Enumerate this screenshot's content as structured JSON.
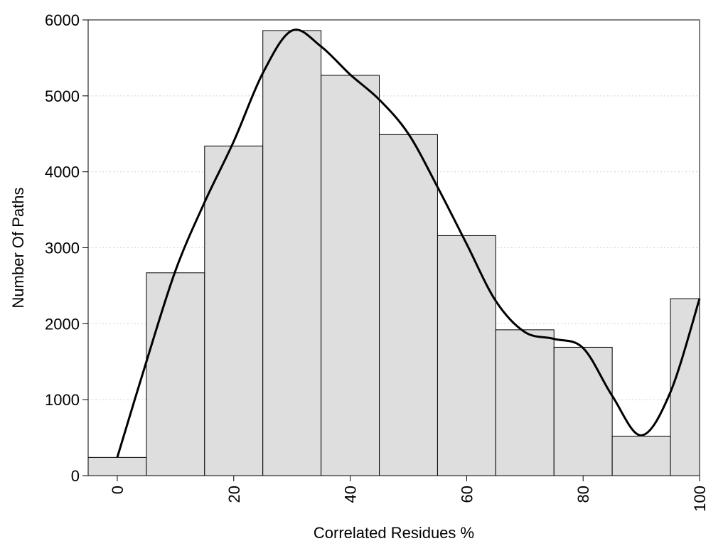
{
  "chart_data": {
    "type": "bar",
    "title": "",
    "xlabel": "Correlated Residues %",
    "ylabel": "Number Of Paths",
    "xlim": [
      -5,
      100
    ],
    "ylim": [
      0,
      6000
    ],
    "x_ticks": [
      0,
      20,
      40,
      60,
      80,
      100
    ],
    "y_ticks": [
      0,
      1000,
      2000,
      3000,
      4000,
      5000,
      6000
    ],
    "grid": "horizontal dotted",
    "bin_width": 10,
    "bins": [
      {
        "center": 0,
        "value": 240
      },
      {
        "center": 10,
        "value": 2670
      },
      {
        "center": 20,
        "value": 4340
      },
      {
        "center": 30,
        "value": 5860
      },
      {
        "center": 40,
        "value": 5270
      },
      {
        "center": 50,
        "value": 4490
      },
      {
        "center": 60,
        "value": 3160
      },
      {
        "center": 70,
        "value": 1920
      },
      {
        "center": 80,
        "value": 1690
      },
      {
        "center": 90,
        "value": 520
      },
      {
        "center": 100,
        "value": 2330
      }
    ],
    "bar_color": "#dedede",
    "bar_edge_color": "#000000",
    "curve": {
      "x": [
        0,
        5,
        10,
        15,
        20,
        25,
        30,
        35,
        40,
        45,
        50,
        55,
        60,
        65,
        70,
        75,
        80,
        85,
        90,
        95,
        100
      ],
      "y": [
        240,
        1500,
        2700,
        3600,
        4400,
        5300,
        5860,
        5650,
        5280,
        4950,
        4500,
        3800,
        3050,
        2300,
        1890,
        1800,
        1680,
        1050,
        530,
        1100,
        2330
      ],
      "color": "#000000"
    }
  }
}
